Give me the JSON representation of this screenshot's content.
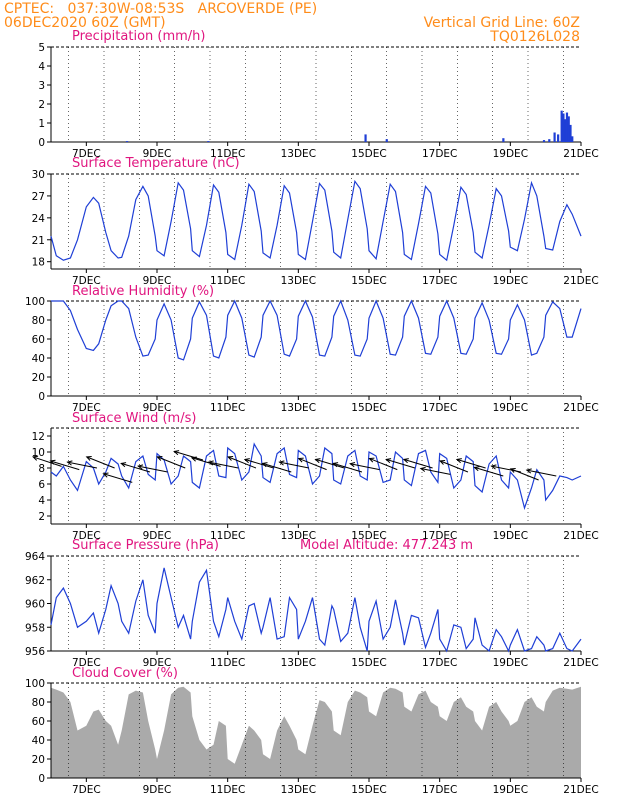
{
  "header": {
    "line1": "CPTEC:   037:30W-08:53S   ARCOVERDE (PE)",
    "line2": "06DEC2020 60Z (GMT)",
    "grid_note": "Vertical Grid Line: 60Z",
    "model_code": "TQ0126L028"
  },
  "x_axis": {
    "start_day": 6.0,
    "end_day": 21.0,
    "tick_labels": [
      "7DEC",
      "9DEC",
      "11DEC",
      "13DEC",
      "15DEC",
      "17DEC",
      "19DEC",
      "21DEC"
    ],
    "tick_days": [
      7,
      9,
      11,
      13,
      15,
      17,
      19,
      21
    ]
  },
  "colors": {
    "header": "#ff8c1a",
    "title": "#e0157f",
    "series_line": "#1f3fd6",
    "precip_bar": "#1f3fd6",
    "cloud_fill": "#aaaaaa",
    "wind_arrow": "#000000"
  },
  "chart_data": [
    {
      "type": "bar",
      "title": "Precipitation (mm/h)",
      "ylim": [
        0,
        5
      ],
      "yticks": [
        0,
        1,
        2,
        3,
        4,
        5
      ],
      "x": [
        8.15,
        10.45,
        14.9,
        15.5,
        18.8,
        19.95,
        20.1,
        20.25,
        20.35,
        20.45,
        20.5,
        20.55,
        20.6,
        20.65,
        20.7,
        20.75
      ],
      "values": [
        0.05,
        0.05,
        0.4,
        0.15,
        0.2,
        0.1,
        0.15,
        0.5,
        0.4,
        1.65,
        1.5,
        1.2,
        1.55,
        1.35,
        0.9,
        0.3
      ]
    },
    {
      "type": "line",
      "title": "Surface Temperature (nC)",
      "ylim": [
        17,
        30
      ],
      "yticks": [
        18,
        21,
        24,
        27,
        30
      ],
      "x": [
        6.0,
        6.15,
        6.35,
        6.55,
        6.75,
        7.0,
        7.2,
        7.35,
        7.55,
        7.7,
        7.9,
        8.0,
        8.2,
        8.4,
        8.6,
        8.75,
        8.95,
        9.0,
        9.2,
        9.4,
        9.6,
        9.75,
        9.95,
        10.0,
        10.2,
        10.4,
        10.6,
        10.75,
        10.95,
        11.0,
        11.2,
        11.4,
        11.6,
        11.75,
        11.95,
        12.0,
        12.2,
        12.4,
        12.6,
        12.75,
        12.95,
        13.0,
        13.2,
        13.4,
        13.6,
        13.75,
        13.95,
        14.0,
        14.2,
        14.4,
        14.6,
        14.75,
        14.95,
        15.0,
        15.2,
        15.4,
        15.6,
        15.75,
        15.95,
        16.0,
        16.2,
        16.4,
        16.6,
        16.75,
        16.95,
        17.0,
        17.2,
        17.4,
        17.6,
        17.75,
        17.95,
        18.0,
        18.2,
        18.4,
        18.6,
        18.75,
        18.95,
        19.0,
        19.2,
        19.4,
        19.6,
        19.75,
        19.95,
        20.0,
        20.2,
        20.4,
        20.6,
        20.75,
        21.0
      ],
      "values": [
        21.5,
        18.8,
        18.2,
        18.5,
        21.0,
        25.5,
        26.8,
        26.0,
        22.0,
        19.5,
        18.5,
        18.6,
        21.5,
        26.5,
        28.3,
        27.0,
        21.5,
        19.5,
        18.8,
        23.5,
        28.8,
        27.8,
        22.5,
        19.5,
        18.7,
        23.0,
        28.5,
        27.5,
        22.0,
        19.0,
        18.3,
        23.0,
        28.6,
        27.6,
        22.2,
        19.2,
        18.5,
        23.0,
        28.4,
        27.4,
        22.0,
        19.0,
        18.3,
        23.5,
        28.7,
        27.8,
        22.2,
        19.3,
        18.5,
        23.8,
        29.0,
        28.0,
        22.5,
        19.5,
        18.4,
        23.5,
        28.6,
        27.6,
        22.0,
        19.0,
        18.3,
        23.2,
        28.3,
        27.4,
        21.8,
        19.0,
        18.2,
        23.0,
        28.2,
        27.2,
        22.0,
        19.3,
        18.5,
        23.0,
        28.0,
        27.0,
        22.2,
        20.0,
        19.5,
        23.8,
        28.8,
        27.0,
        21.5,
        19.8,
        19.6,
        23.5,
        25.8,
        24.5,
        21.5
      ]
    },
    {
      "type": "line",
      "title": "Relative Humidity (%)",
      "ylim": [
        0,
        100
      ],
      "yticks": [
        0,
        20,
        40,
        60,
        80,
        100
      ],
      "x": [
        6.0,
        6.15,
        6.35,
        6.55,
        6.75,
        7.0,
        7.2,
        7.35,
        7.55,
        7.7,
        7.9,
        8.0,
        8.2,
        8.4,
        8.6,
        8.75,
        8.95,
        9.0,
        9.2,
        9.4,
        9.6,
        9.75,
        9.95,
        10.0,
        10.2,
        10.4,
        10.6,
        10.75,
        10.95,
        11.0,
        11.2,
        11.4,
        11.6,
        11.75,
        11.95,
        12.0,
        12.2,
        12.4,
        12.6,
        12.75,
        12.95,
        13.0,
        13.2,
        13.4,
        13.6,
        13.75,
        13.95,
        14.0,
        14.2,
        14.4,
        14.6,
        14.75,
        14.95,
        15.0,
        15.2,
        15.4,
        15.6,
        15.75,
        15.95,
        16.0,
        16.2,
        16.4,
        16.6,
        16.75,
        16.95,
        17.0,
        17.2,
        17.4,
        17.6,
        17.75,
        17.95,
        18.0,
        18.2,
        18.4,
        18.6,
        18.75,
        18.95,
        19.0,
        19.2,
        19.4,
        19.6,
        19.75,
        19.95,
        20.0,
        20.2,
        20.4,
        20.6,
        20.75,
        21.0
      ],
      "values": [
        100,
        100,
        100,
        90,
        70,
        50,
        48,
        55,
        80,
        95,
        100,
        100,
        92,
        62,
        42,
        43,
        60,
        80,
        97,
        80,
        40,
        38,
        60,
        82,
        99,
        85,
        42,
        40,
        62,
        85,
        100,
        82,
        43,
        41,
        62,
        85,
        100,
        85,
        44,
        42,
        60,
        84,
        100,
        83,
        43,
        42,
        62,
        84,
        100,
        80,
        43,
        42,
        60,
        82,
        100,
        82,
        44,
        43,
        62,
        84,
        100,
        82,
        45,
        44,
        62,
        84,
        100,
        82,
        45,
        44,
        60,
        82,
        98,
        80,
        45,
        44,
        60,
        80,
        96,
        80,
        43,
        45,
        62,
        85,
        99,
        92,
        62,
        62,
        92
      ]
    },
    {
      "type": "line",
      "title": "Surface Wind (m/s)",
      "ylim": [
        1,
        13
      ],
      "yticks": [
        2,
        4,
        6,
        8,
        10,
        12
      ],
      "x": [
        6.0,
        6.15,
        6.35,
        6.55,
        6.75,
        7.0,
        7.2,
        7.35,
        7.55,
        7.7,
        7.9,
        8.0,
        8.2,
        8.4,
        8.6,
        8.75,
        8.95,
        9.0,
        9.2,
        9.4,
        9.6,
        9.75,
        9.95,
        10.0,
        10.2,
        10.4,
        10.6,
        10.75,
        10.95,
        11.0,
        11.2,
        11.4,
        11.6,
        11.75,
        11.95,
        12.0,
        12.2,
        12.4,
        12.6,
        12.75,
        12.95,
        13.0,
        13.2,
        13.4,
        13.6,
        13.75,
        13.95,
        14.0,
        14.2,
        14.4,
        14.6,
        14.75,
        14.95,
        15.0,
        15.2,
        15.4,
        15.6,
        15.75,
        15.95,
        16.0,
        16.2,
        16.4,
        16.6,
        16.75,
        16.95,
        17.0,
        17.2,
        17.4,
        17.6,
        17.75,
        17.95,
        18.0,
        18.2,
        18.4,
        18.6,
        18.75,
        18.95,
        19.0,
        19.2,
        19.4,
        19.6,
        19.75,
        19.95,
        20.0,
        20.2,
        20.4,
        20.6,
        20.75,
        21.0
      ],
      "values": [
        7.5,
        7.0,
        8.2,
        6.5,
        5.2,
        8.8,
        8.0,
        6.0,
        7.5,
        9.2,
        8.5,
        7.0,
        5.5,
        8.8,
        9.5,
        7.2,
        6.5,
        9.8,
        9.0,
        6.0,
        7.0,
        9.5,
        8.8,
        6.2,
        5.5,
        9.5,
        10.2,
        7.0,
        6.8,
        10.5,
        9.8,
        6.5,
        7.5,
        11.0,
        9.5,
        6.8,
        6.2,
        9.8,
        10.5,
        7.2,
        6.8,
        10.2,
        9.5,
        6.0,
        7.0,
        10.5,
        9.8,
        6.5,
        6.0,
        9.5,
        10.2,
        7.0,
        6.5,
        10.0,
        9.5,
        6.2,
        6.5,
        10.0,
        9.2,
        6.5,
        5.8,
        9.8,
        10.2,
        7.5,
        6.2,
        9.8,
        9.2,
        5.5,
        6.5,
        9.5,
        8.8,
        5.8,
        5.0,
        8.5,
        9.5,
        6.5,
        5.5,
        7.5,
        6.5,
        3.0,
        5.5,
        7.8,
        6.5,
        4.0,
        5.2,
        7.0,
        6.8,
        6.5,
        7.0
      ]
    },
    {
      "type": "line",
      "title": "Surface Pressure (hPa)",
      "annotation": "Model Altitude: 477.243 m",
      "ylim": [
        956,
        964
      ],
      "yticks": [
        956,
        958,
        960,
        962,
        964
      ],
      "x": [
        6.0,
        6.15,
        6.35,
        6.55,
        6.75,
        7.0,
        7.2,
        7.35,
        7.55,
        7.7,
        7.9,
        8.0,
        8.2,
        8.4,
        8.6,
        8.75,
        8.95,
        9.0,
        9.2,
        9.4,
        9.6,
        9.75,
        9.95,
        10.0,
        10.2,
        10.4,
        10.6,
        10.75,
        10.95,
        11.0,
        11.2,
        11.4,
        11.6,
        11.75,
        11.95,
        12.0,
        12.2,
        12.4,
        12.6,
        12.75,
        12.95,
        13.0,
        13.2,
        13.4,
        13.6,
        13.75,
        13.95,
        14.0,
        14.2,
        14.4,
        14.6,
        14.75,
        14.95,
        15.0,
        15.2,
        15.4,
        15.6,
        15.75,
        15.95,
        16.0,
        16.2,
        16.4,
        16.6,
        16.75,
        16.95,
        17.0,
        17.2,
        17.4,
        17.6,
        17.75,
        17.95,
        18.0,
        18.2,
        18.4,
        18.6,
        18.75,
        18.95,
        19.0,
        19.2,
        19.4,
        19.6,
        19.75,
        19.95,
        20.0,
        20.2,
        20.4,
        20.6,
        20.75,
        21.0
      ],
      "values": [
        958.2,
        960.5,
        961.3,
        960.0,
        958.0,
        958.5,
        959.2,
        957.5,
        959.5,
        961.5,
        960.0,
        958.5,
        957.5,
        960.2,
        962.0,
        959.0,
        957.5,
        960.0,
        963.0,
        960.5,
        958.0,
        959.0,
        957.0,
        958.5,
        961.8,
        962.8,
        958.5,
        957.2,
        959.5,
        960.5,
        958.5,
        957.0,
        959.8,
        960.0,
        957.5,
        958.0,
        960.5,
        957.0,
        957.2,
        960.5,
        959.5,
        957.0,
        958.5,
        960.5,
        957.0,
        956.5,
        959.8,
        959.5,
        956.8,
        957.5,
        960.5,
        958.0,
        956.0,
        958.5,
        960.2,
        957.0,
        958.0,
        960.3,
        957.5,
        956.5,
        959.0,
        958.8,
        956.3,
        957.5,
        959.5,
        957.0,
        956.0,
        958.2,
        958.0,
        956.2,
        957.0,
        958.8,
        956.5,
        956.0,
        957.8,
        957.2,
        956.0,
        956.5,
        957.8,
        956.0,
        956.2,
        957.2,
        956.5,
        956.0,
        956.2,
        957.5,
        956.2,
        956.0,
        957.0
      ]
    },
    {
      "type": "area",
      "title": "Cloud Cover (%)",
      "ylim": [
        0,
        100
      ],
      "yticks": [
        0,
        20,
        40,
        60,
        80,
        100
      ],
      "x": [
        6.0,
        6.15,
        6.35,
        6.55,
        6.75,
        7.0,
        7.2,
        7.35,
        7.55,
        7.7,
        7.9,
        8.0,
        8.2,
        8.4,
        8.6,
        8.75,
        8.95,
        9.0,
        9.2,
        9.4,
        9.6,
        9.75,
        9.95,
        10.0,
        10.2,
        10.4,
        10.6,
        10.75,
        10.95,
        11.0,
        11.2,
        11.4,
        11.6,
        11.75,
        11.95,
        12.0,
        12.2,
        12.4,
        12.6,
        12.75,
        12.95,
        13.0,
        13.2,
        13.4,
        13.6,
        13.75,
        13.95,
        14.0,
        14.2,
        14.4,
        14.6,
        14.75,
        14.95,
        15.0,
        15.2,
        15.4,
        15.6,
        15.75,
        15.95,
        16.0,
        16.2,
        16.4,
        16.6,
        16.75,
        16.95,
        17.0,
        17.2,
        17.4,
        17.6,
        17.75,
        17.95,
        18.0,
        18.2,
        18.4,
        18.6,
        18.75,
        18.95,
        19.0,
        19.2,
        19.4,
        19.6,
        19.75,
        19.95,
        20.0,
        20.2,
        20.4,
        20.6,
        20.75,
        21.0
      ],
      "values": [
        95,
        93,
        90,
        80,
        50,
        55,
        70,
        72,
        60,
        55,
        35,
        50,
        88,
        92,
        90,
        60,
        30,
        20,
        50,
        88,
        95,
        96,
        90,
        65,
        40,
        30,
        35,
        60,
        55,
        20,
        15,
        35,
        55,
        50,
        40,
        25,
        20,
        50,
        65,
        55,
        40,
        30,
        25,
        55,
        82,
        80,
        70,
        50,
        45,
        80,
        92,
        90,
        85,
        70,
        65,
        90,
        95,
        94,
        90,
        75,
        70,
        88,
        92,
        80,
        75,
        65,
        60,
        80,
        85,
        75,
        70,
        60,
        50,
        75,
        80,
        70,
        60,
        55,
        60,
        80,
        85,
        75,
        70,
        80,
        92,
        95,
        94,
        93,
        96
      ]
    }
  ],
  "wind_vectors": {
    "x": [
      6.3,
      6.8,
      7.3,
      7.8,
      8.3,
      8.8,
      9.3,
      9.8,
      10.3,
      10.8,
      11.3,
      11.8,
      12.3,
      12.8,
      13.3,
      13.8,
      14.3,
      14.8,
      15.3,
      15.8,
      16.3,
      16.8,
      17.3,
      17.8,
      18.3,
      18.8,
      19.3,
      19.8,
      20.3
    ],
    "y": [
      8.2,
      7.8,
      8.0,
      8.0,
      6.2,
      7.5,
      7.5,
      8.0,
      9.0,
      8.2,
      8.0,
      8.0,
      8.0,
      7.5,
      8.0,
      7.8,
      8.0,
      7.5,
      7.8,
      7.8,
      8.0,
      8.0,
      7.2,
      7.5,
      8.0,
      7.0,
      7.5,
      6.5,
      7.0
    ],
    "u": [
      -0.9,
      -1.0,
      -1.0,
      -1.0,
      -1.0,
      -1.0,
      -1.0,
      -1.0,
      -1.0,
      -1.0,
      -1.0,
      -1.0,
      -1.0,
      -1.0,
      -1.0,
      -1.0,
      -1.0,
      -1.0,
      -1.0,
      -1.0,
      -1.0,
      -1.0,
      -1.0,
      -1.0,
      -1.0,
      -1.0,
      -1.0,
      -1.0,
      -1.0
    ],
    "v": [
      0.3,
      0.3,
      0.2,
      0.4,
      0.3,
      0.3,
      0.2,
      0.4,
      0.3,
      0.3,
      0.2,
      0.4,
      0.3,
      0.3,
      0.2,
      0.4,
      0.3,
      0.3,
      0.2,
      0.4,
      0.3,
      0.3,
      0.2,
      0.4,
      0.3,
      0.3,
      0.2,
      0.4,
      0.2
    ]
  }
}
